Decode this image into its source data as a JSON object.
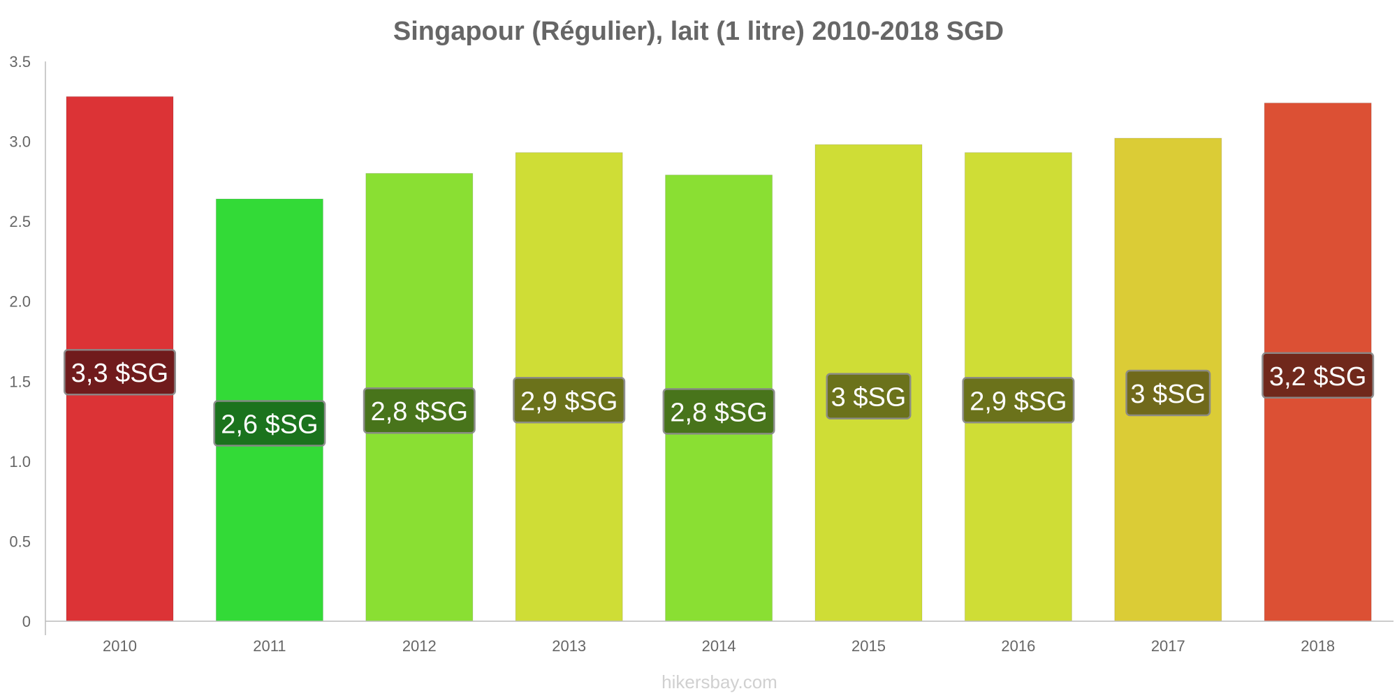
{
  "chart_data": {
    "type": "bar",
    "title": "Singapour (Régulier), lait (1 litre) 2010-2018 SGD",
    "xlabel": "",
    "ylabel": "",
    "ylim": [
      0,
      3.5
    ],
    "yticks": [
      {
        "value": 0,
        "label": "0"
      },
      {
        "value": 0.5,
        "label": "0.5"
      },
      {
        "value": 1,
        "label": "1.0"
      },
      {
        "value": 1.5,
        "label": "1.5"
      },
      {
        "value": 2,
        "label": "2.0"
      },
      {
        "value": 2.5,
        "label": "2.5"
      },
      {
        "value": 3,
        "label": "3.0"
      },
      {
        "value": 3.5,
        "label": "3.5"
      }
    ],
    "categories": [
      "2010",
      "2011",
      "2012",
      "2013",
      "2014",
      "2015",
      "2016",
      "2017",
      "2018"
    ],
    "values": [
      3.28,
      2.64,
      2.8,
      2.93,
      2.79,
      2.98,
      2.93,
      3.02,
      3.24
    ],
    "data_labels": [
      "3,3 $SG",
      "2,6 $SG",
      "2,8 $SG",
      "2,9 $SG",
      "2,8 $SG",
      "3 $SG",
      "2,9 $SG",
      "3 $SG",
      "3,2 $SG"
    ],
    "bar_colors": [
      "#dc3336",
      "#33da37",
      "#8adf33",
      "#cfdd36",
      "#8adf33",
      "#cfdd36",
      "#cfdd36",
      "#dbcc36",
      "#dc5034"
    ],
    "label_colors": [
      "#6b1a1b",
      "#1a6e1c",
      "#456f1a",
      "#666d1a",
      "#456f1a",
      "#666d1a",
      "#666d1a",
      "#6b641a",
      "#6b261a"
    ],
    "grid": false
  },
  "footer": "hikersbay.com"
}
